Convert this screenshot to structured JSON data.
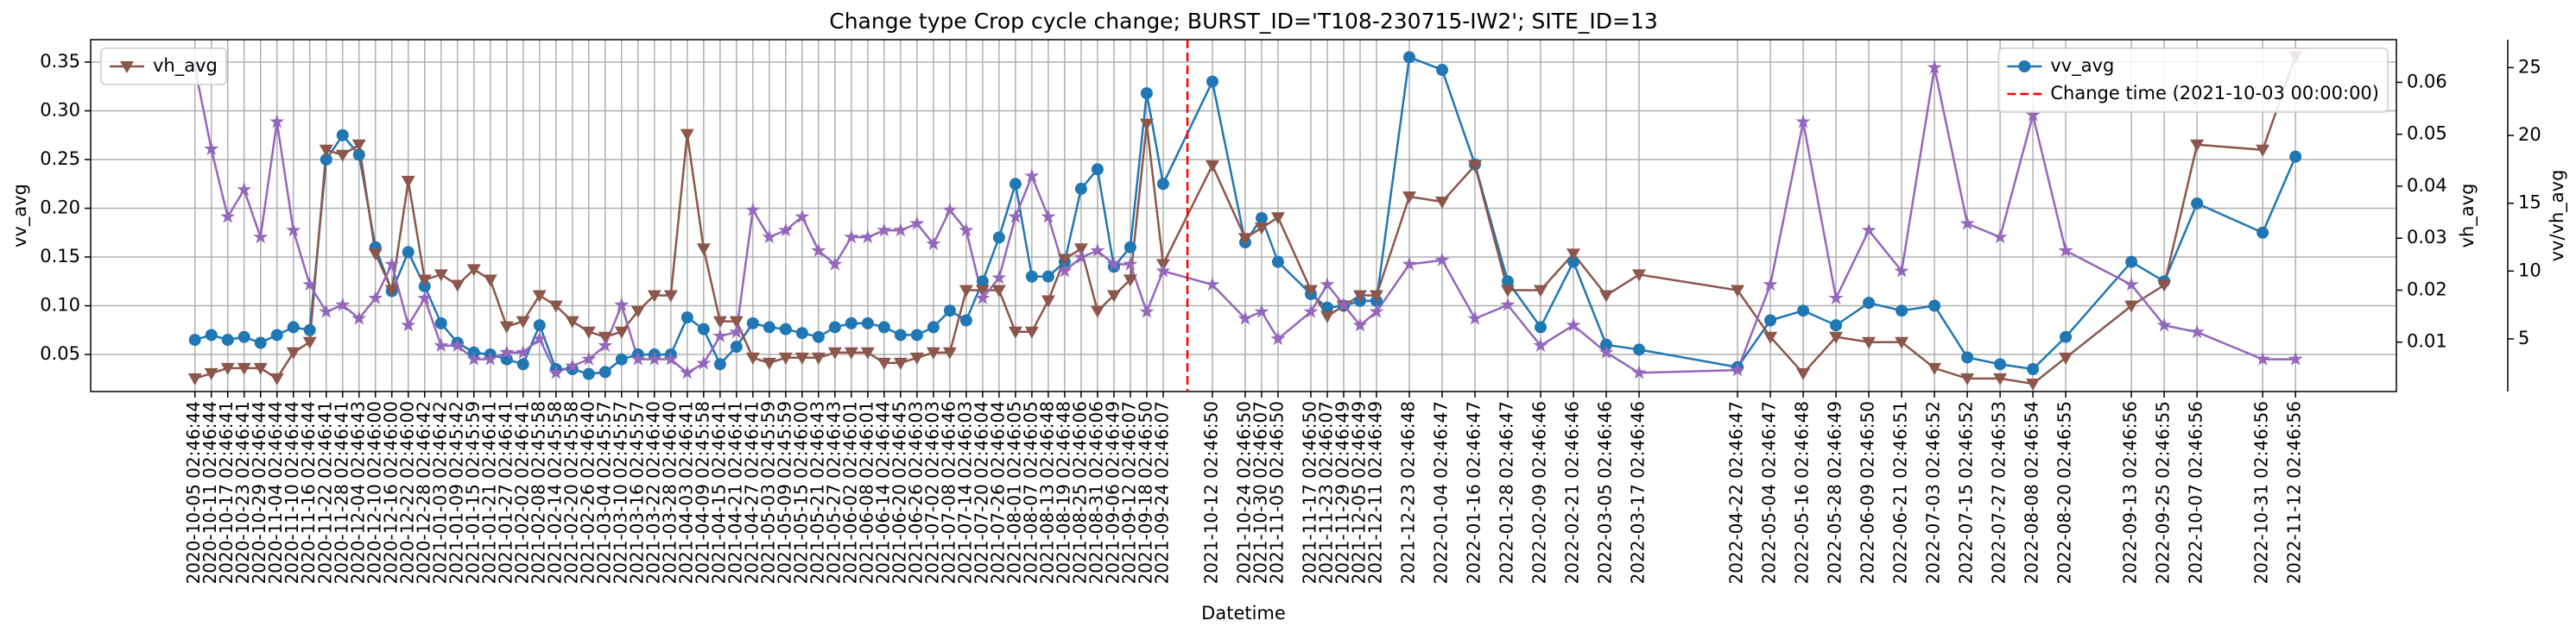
{
  "chart_data": {
    "type": "line",
    "title": "Change type Crop cycle change; BURST_ID='T108-230715-IW2'; SITE_ID=13",
    "xlabel": "Datetime",
    "x": [
      "2020-10-05 02:46:44",
      "2020-10-11 02:46:44",
      "2020-10-17 02:46:41",
      "2020-10-23 02:46:41",
      "2020-10-29 02:46:44",
      "2020-11-04 02:46:44",
      "2020-11-10 02:46:44",
      "2020-11-16 02:46:44",
      "2020-11-22 02:46:41",
      "2020-11-28 02:46:41",
      "2020-12-04 02:46:43",
      "2020-12-10 02:46:00",
      "2020-12-16 02:46:00",
      "2020-12-22 02:46:00",
      "2020-12-28 02:46:42",
      "2021-01-03 02:46:42",
      "2021-01-09 02:45:42",
      "2021-01-15 02:45:59",
      "2021-01-21 02:46:41",
      "2021-01-27 02:46:41",
      "2021-02-02 02:46:41",
      "2021-02-08 02:45:58",
      "2021-02-14 02:45:58",
      "2021-02-20 02:45:58",
      "2021-02-26 02:46:40",
      "2021-03-04 02:45:57",
      "2021-03-10 02:45:57",
      "2021-03-16 02:45:57",
      "2021-03-22 02:46:40",
      "2021-03-28 02:46:40",
      "2021-04-03 02:46:41",
      "2021-04-09 02:45:58",
      "2021-04-15 02:46:41",
      "2021-04-21 02:46:41",
      "2021-04-27 02:46:41",
      "2021-05-03 02:45:59",
      "2021-05-09 02:45:59",
      "2021-05-15 02:46:00",
      "2021-05-21 02:46:43",
      "2021-05-27 02:46:43",
      "2021-06-02 02:46:01",
      "2021-06-08 02:46:01",
      "2021-06-14 02:46:44",
      "2021-06-20 02:46:45",
      "2021-06-26 02:46:03",
      "2021-07-02 02:46:03",
      "2021-07-08 02:46:46",
      "2021-07-14 02:46:03",
      "2021-07-20 02:46:04",
      "2021-07-26 02:46:04",
      "2021-08-01 02:46:05",
      "2021-08-07 02:46:05",
      "2021-08-13 02:46:48",
      "2021-08-19 02:46:48",
      "2021-08-25 02:46:06",
      "2021-08-31 02:46:06",
      "2021-09-06 02:46:49",
      "2021-09-12 02:46:07",
      "2021-09-18 02:46:50",
      "2021-09-24 02:46:07",
      "2021-10-12 02:46:50",
      "2021-10-24 02:46:50",
      "2021-10-30 02:46:07",
      "2021-11-05 02:46:50",
      "2021-11-17 02:46:50",
      "2021-11-23 02:46:07",
      "2021-11-29 02:46:49",
      "2021-12-05 02:46:49",
      "2021-12-11 02:46:49",
      "2021-12-23 02:46:48",
      "2022-01-04 02:46:47",
      "2022-01-16 02:46:47",
      "2022-01-28 02:46:47",
      "2022-02-09 02:46:46",
      "2022-02-21 02:46:46",
      "2022-03-05 02:46:46",
      "2022-03-17 02:46:46",
      "2022-04-22 02:46:47",
      "2022-05-04 02:46:47",
      "2022-05-16 02:46:48",
      "2022-05-28 02:46:49",
      "2022-06-09 02:46:50",
      "2022-06-21 02:46:51",
      "2022-07-03 02:46:52",
      "2022-07-15 02:46:52",
      "2022-07-27 02:46:53",
      "2022-08-08 02:46:54",
      "2022-08-20 02:46:55",
      "2022-09-13 02:46:56",
      "2022-09-25 02:46:55",
      "2022-10-07 02:46:56",
      "2022-10-31 02:46:56",
      "2022-11-12 02:46:56"
    ],
    "xlim": [
      "2020-08-28",
      "2022-12-19"
    ],
    "series": [
      {
        "name": "vv_avg",
        "color": "#1f77b4",
        "axis": "y",
        "marker": "circle",
        "legend_loc": "upper right",
        "values": [
          0.065,
          0.07,
          0.065,
          0.068,
          0.062,
          0.07,
          0.078,
          0.075,
          0.25,
          0.275,
          0.255,
          0.16,
          0.115,
          0.155,
          0.12,
          0.082,
          0.062,
          0.052,
          0.05,
          0.045,
          0.04,
          0.08,
          0.035,
          0.035,
          0.03,
          0.032,
          0.045,
          0.05,
          0.05,
          0.05,
          0.088,
          0.076,
          0.04,
          0.058,
          0.082,
          0.078,
          0.076,
          0.072,
          0.068,
          0.078,
          0.082,
          0.082,
          0.078,
          0.07,
          0.07,
          0.078,
          0.095,
          0.085,
          0.125,
          0.17,
          0.225,
          0.13,
          0.13,
          0.145,
          0.22,
          0.24,
          0.14,
          0.16,
          0.318,
          0.225,
          0.33,
          0.165,
          0.19,
          0.145,
          0.112,
          0.098,
          0.1,
          0.105,
          0.105,
          0.355,
          0.342,
          0.245,
          0.125,
          0.078,
          0.145,
          0.06,
          0.055,
          0.037,
          0.085,
          0.095,
          0.08,
          0.103,
          0.095,
          0.1,
          0.047,
          0.04,
          0.035,
          0.068,
          0.145,
          0.125,
          0.205,
          0.175,
          0.253
        ]
      },
      {
        "name": "vh_avg",
        "color": "#8c564b",
        "axis": "y2",
        "marker": "triangle-down",
        "legend_loc": "upper left",
        "values": [
          0.003,
          0.004,
          0.005,
          0.005,
          0.005,
          0.003,
          0.008,
          0.01,
          0.047,
          0.046,
          0.048,
          0.027,
          0.02,
          0.041,
          0.022,
          0.023,
          0.021,
          0.024,
          0.022,
          0.013,
          0.014,
          0.019,
          0.017,
          0.014,
          0.012,
          0.011,
          0.012,
          0.016,
          0.019,
          0.019,
          0.05,
          0.028,
          0.014,
          0.014,
          0.007,
          0.006,
          0.007,
          0.007,
          0.007,
          0.008,
          0.008,
          0.008,
          0.006,
          0.006,
          0.007,
          0.008,
          0.008,
          0.02,
          0.02,
          0.02,
          0.012,
          0.012,
          0.018,
          0.026,
          0.028,
          0.016,
          0.019,
          0.022,
          0.052,
          0.025,
          0.044,
          0.03,
          0.032,
          0.034,
          0.02,
          0.015,
          0.017,
          0.019,
          0.019,
          0.038,
          0.037,
          0.044,
          0.02,
          0.02,
          0.027,
          0.019,
          0.023,
          0.02,
          0.011,
          0.004,
          0.011,
          0.01,
          0.01,
          0.005,
          0.003,
          0.003,
          0.002,
          0.007,
          0.017,
          0.021,
          0.048,
          0.047,
          0.065
        ]
      },
      {
        "name": "vv/vh_avg",
        "color": "#9467bd",
        "axis": "y3",
        "marker": "star",
        "values": [
          25,
          19,
          14,
          16,
          12.5,
          21,
          13,
          9,
          7,
          7.5,
          6.5,
          8,
          10.5,
          6,
          8,
          4.5,
          4.5,
          3.5,
          3.5,
          4,
          4,
          5,
          2.5,
          3,
          3.5,
          4.5,
          7.5,
          3.5,
          3.5,
          3.5,
          2.5,
          3.2,
          5.2,
          5.5,
          14.5,
          12.5,
          13,
          14,
          11.5,
          10.5,
          12.5,
          12.5,
          13,
          13,
          13.5,
          12,
          14.5,
          13,
          8,
          9.5,
          14,
          17,
          14,
          10,
          11,
          11.5,
          10.5,
          10.5,
          7,
          10,
          9,
          6.5,
          7,
          5,
          7,
          9,
          7.5,
          6,
          7,
          10.5,
          10.8,
          6.5,
          7.5,
          4.5,
          6,
          4,
          2.5,
          2.7,
          9,
          21,
          8,
          13,
          10,
          25,
          13.5,
          12.5,
          21.5,
          11.5,
          9,
          6,
          5.5,
          3.5,
          3.5
        ]
      }
    ],
    "ylim": [
      0.012,
      0.373
    ],
    "yticks": [
      0.05,
      {
        "value": 0.1,
        "label": "0.10"
      },
      0.15,
      {
        "value": 0.2,
        "label": "0.20"
      },
      0.25,
      {
        "value": 0.3,
        "label": "0.30"
      },
      0.35
    ],
    "y2lim": [
      0.0005,
      0.0682
    ],
    "y2ticks": [
      0.01,
      0.02,
      0.03,
      0.04,
      0.05,
      0.06
    ],
    "y3lim": [
      1.12,
      27.06
    ],
    "y3ticks": [
      5,
      10,
      15,
      20,
      25
    ],
    "vline": {
      "label": "Change time (2021-10-03 00:00:00)",
      "x": "2021-10-03 00:00:00",
      "color": "#ff0000",
      "legend_loc": "upper right"
    },
    "grid": true
  }
}
